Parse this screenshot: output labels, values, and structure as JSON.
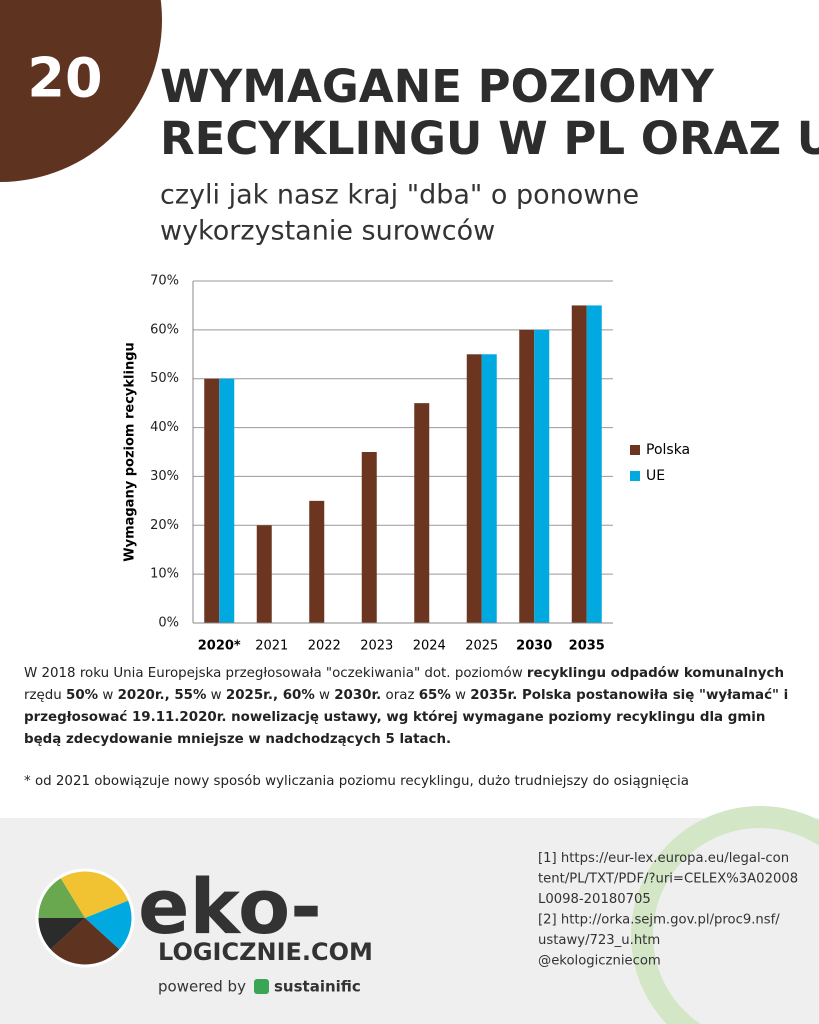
{
  "header": {
    "number": "20",
    "title_lines": [
      "WYMAGANE POZIOMY",
      "RECYKLINGU W PL ORAZ UE"
    ],
    "subtitle_lines": [
      "czyli jak nasz kraj \"dba\" o ponowne",
      "wykorzystanie surowców"
    ]
  },
  "chart_data": {
    "type": "bar",
    "y_label": "Wymagany poziom recyklingu",
    "categories": [
      "2020*",
      "2021",
      "2022",
      "2023",
      "2024",
      "2025",
      "2030",
      "2035"
    ],
    "series": [
      {
        "name": "Polska",
        "color": "#6b3520",
        "values": [
          50,
          20,
          25,
          35,
          45,
          55,
          60,
          65
        ]
      },
      {
        "name": "UE",
        "color": "#00a9e0",
        "values": [
          50,
          null,
          null,
          null,
          null,
          55,
          60,
          65
        ]
      }
    ],
    "ylim": [
      0,
      70
    ],
    "yticks": [
      {
        "value": 0,
        "label": "0%"
      },
      {
        "value": 10,
        "label": "10%"
      },
      {
        "value": 20,
        "label": "20%"
      },
      {
        "value": 30,
        "label": "30%"
      },
      {
        "value": 40,
        "label": "40%"
      },
      {
        "value": 50,
        "label": "50%"
      },
      {
        "value": 60,
        "label": "60%"
      },
      {
        "value": 70,
        "label": "70%"
      }
    ],
    "grid": true,
    "legend": "right"
  },
  "description": {
    "runs": [
      {
        "text": "W 2018 roku Unia Europejska przegłosowała \"oczekiwania\" dot. poziomów ",
        "bold": false
      },
      {
        "text": "recyklingu odpadów komunalnych",
        "bold": true
      },
      {
        "text": " rzędu ",
        "bold": false
      },
      {
        "text": "50%",
        "bold": true
      },
      {
        "text": " w ",
        "bold": false
      },
      {
        "text": "2020r., 55%",
        "bold": true
      },
      {
        "text": " w ",
        "bold": false
      },
      {
        "text": "2025r., 60%",
        "bold": true
      },
      {
        "text": " w ",
        "bold": false
      },
      {
        "text": "2030r.",
        "bold": true
      },
      {
        "text": " oraz ",
        "bold": false
      },
      {
        "text": "65%",
        "bold": true
      },
      {
        "text": " w ",
        "bold": false
      },
      {
        "text": "2035r. Polska postanowiła się \"wyłamać\" i przegłosować 19.11.2020r. nowelizację ustawy, wg której wymagane poziomy recyklingu dla gmin będą zdecydowanie mniejsze w nadchodzących 5 latach.",
        "bold": true
      }
    ]
  },
  "footnote": "* od 2021 obowiązuje nowy sposób wyliczania poziomu recyklingu, dużo trudniejszy do osiągnięcia",
  "footer": {
    "logo_text": "eko-",
    "logo_domain": "LOGICZNIE.COM",
    "powered_by": "powered by",
    "brand": "sustainific",
    "sources": [
      "[1] https://eur-lex.europa.eu/legal-con",
      "tent/PL/TXT/PDF/?uri=CELEX%3A02008",
      "L0098-20180705",
      "[2] http://orka.sejm.gov.pl/proc9.nsf/",
      "ustawy/723_u.htm",
      "@ekologiczniecom"
    ]
  }
}
